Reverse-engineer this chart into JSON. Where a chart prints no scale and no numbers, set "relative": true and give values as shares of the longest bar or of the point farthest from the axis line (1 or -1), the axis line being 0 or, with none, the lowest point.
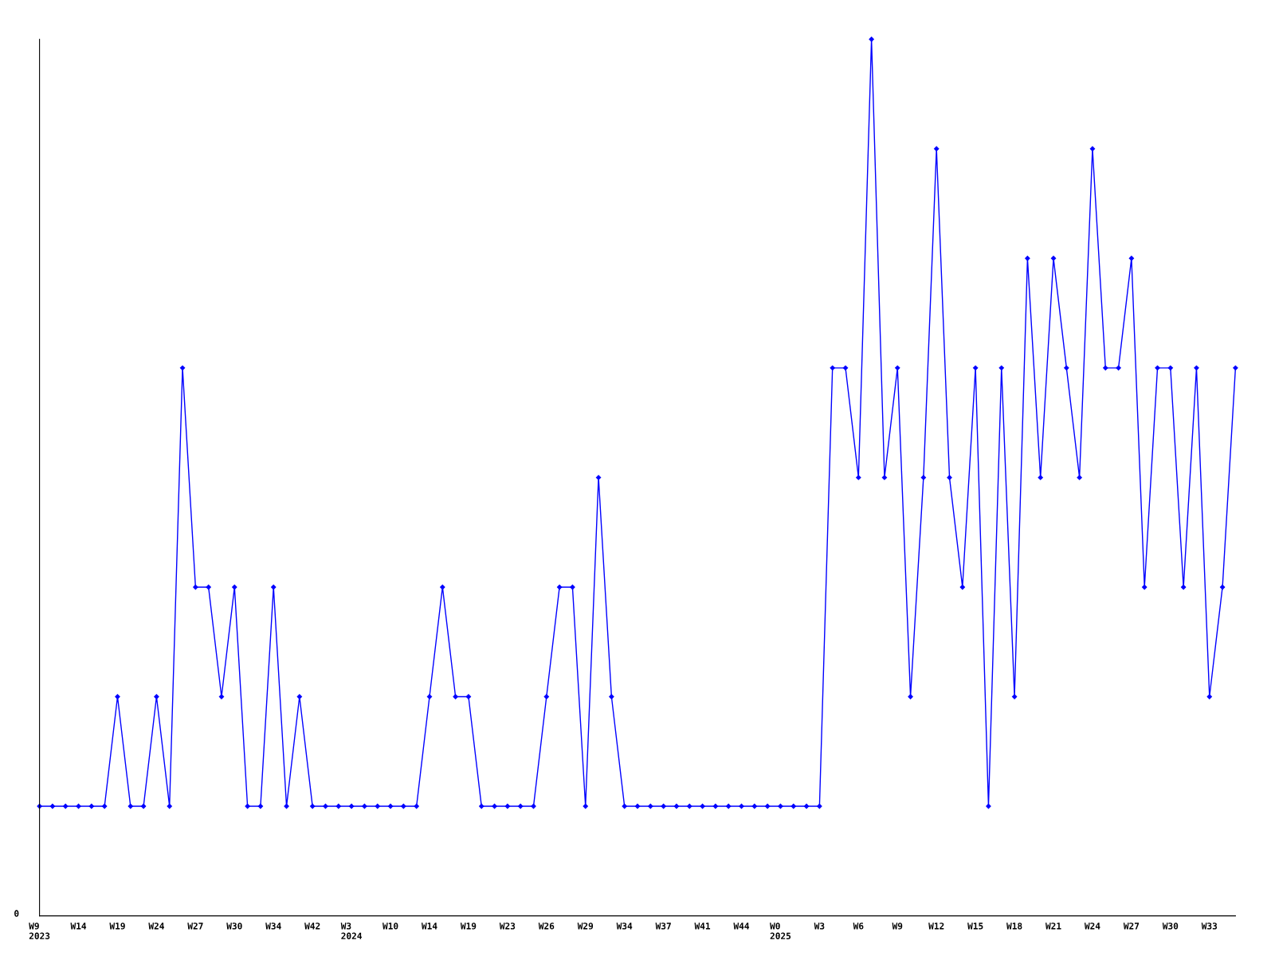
{
  "chart_data": {
    "type": "line",
    "relative": true,
    "annotations": [
      "0"
    ],
    "grid": false,
    "legend": false,
    "marker": "diamond",
    "line_style": "solid",
    "categories": [
      "W9\n2023",
      null,
      null,
      "W14",
      null,
      null,
      "W19",
      null,
      null,
      "W24",
      null,
      null,
      "W27",
      null,
      null,
      "W30",
      null,
      null,
      "W34",
      null,
      null,
      "W42",
      null,
      null,
      "W3\n2024",
      null,
      null,
      "W10",
      null,
      null,
      "W14",
      null,
      null,
      "W19",
      null,
      null,
      "W23",
      null,
      null,
      "W26",
      null,
      null,
      "W29",
      null,
      null,
      "W34",
      null,
      null,
      "W37",
      null,
      null,
      "W41",
      null,
      null,
      "W44",
      null,
      null,
      "W0\n2025",
      null,
      null,
      "W3",
      null,
      null,
      "W6",
      null,
      null,
      "W9",
      null,
      null,
      "W12",
      null,
      null,
      "W15",
      null,
      null,
      "W18",
      null,
      null,
      "W21",
      null,
      null,
      "W24",
      null,
      null,
      "W27",
      null,
      null,
      "W30",
      null,
      null,
      "W33",
      null,
      null
    ],
    "series": [
      {
        "color": "#0000ff",
        "values": [
          0.125,
          0.125,
          0.125,
          0.125,
          0.125,
          0.125,
          0.25,
          0.125,
          0.125,
          0.25,
          0.125,
          0.625,
          0.375,
          0.375,
          0.25,
          0.375,
          0.125,
          0.125,
          0.375,
          0.125,
          0.25,
          0.125,
          0.125,
          0.125,
          0.125,
          0.125,
          0.125,
          0.125,
          0.125,
          0.125,
          0.25,
          0.375,
          0.25,
          0.25,
          0.125,
          0.125,
          0.125,
          0.125,
          0.125,
          0.25,
          0.375,
          0.375,
          0.125,
          0.5,
          0.25,
          0.125,
          0.125,
          0.125,
          0.125,
          0.125,
          0.125,
          0.125,
          0.125,
          0.125,
          0.125,
          0.125,
          0.125,
          0.125,
          0.125,
          0.125,
          0.125,
          0.625,
          0.625,
          0.5,
          1,
          0.5,
          0.625,
          0.25,
          0.5,
          0.875,
          0.5,
          0.375,
          0.625,
          0.125,
          0.625,
          0.25,
          0.75,
          0.5,
          0.75,
          0.625,
          0.5,
          0.875,
          0.625,
          0.625,
          0.75,
          0.375,
          0.625,
          0.625,
          0.375,
          0.625,
          0.25,
          0.375,
          0.625
        ]
      }
    ]
  }
}
